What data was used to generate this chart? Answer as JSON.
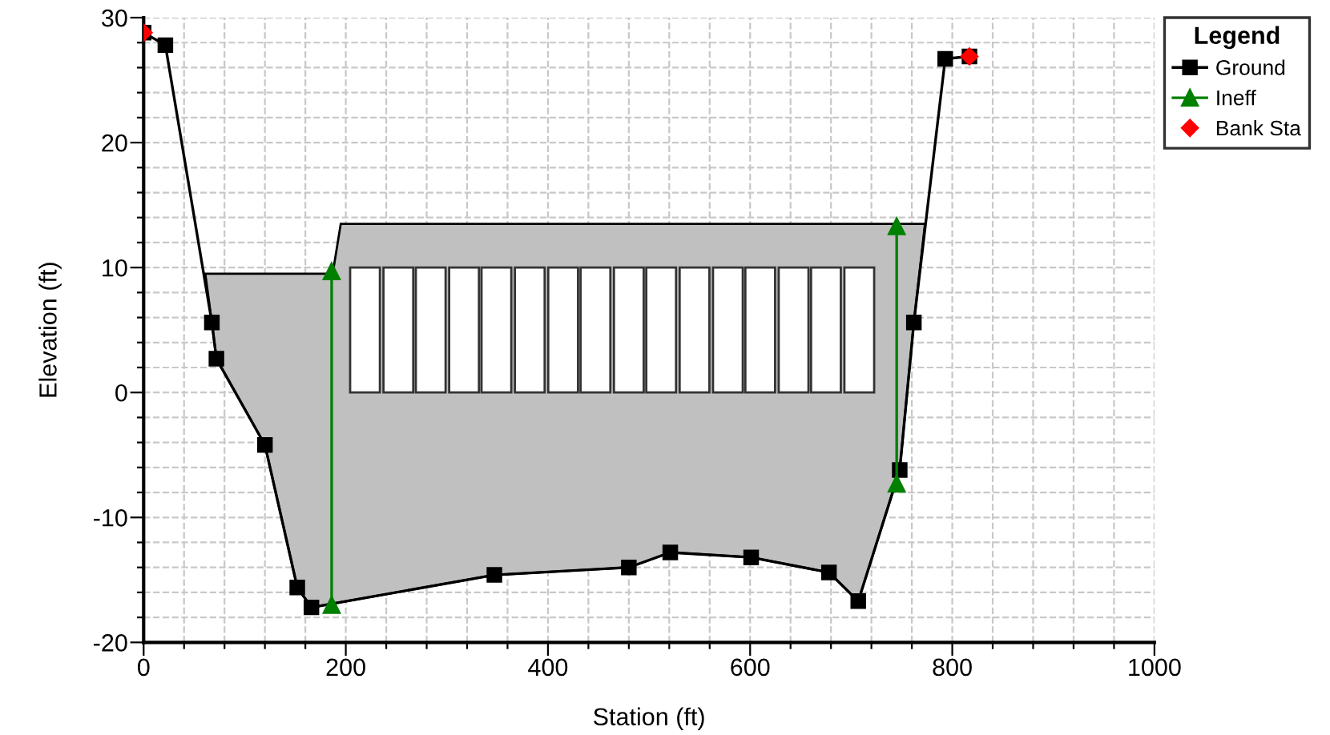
{
  "chart_data": {
    "type": "line",
    "xlabel": "Station (ft)",
    "ylabel": "Elevation (ft)",
    "legend_title": "Legend",
    "xlim": [
      0,
      1000
    ],
    "ylim": [
      -20,
      30
    ],
    "xticks": [
      0,
      {
        "value": 40,
        "label": null
      },
      {
        "value": 80,
        "label": null
      },
      {
        "value": 120,
        "label": null
      },
      {
        "value": 160,
        "label": null
      },
      200,
      {
        "value": 240,
        "label": null
      },
      {
        "value": 280,
        "label": null
      },
      {
        "value": 320,
        "label": null
      },
      {
        "value": 360,
        "label": null
      },
      400,
      {
        "value": 440,
        "label": null
      },
      {
        "value": 480,
        "label": null
      },
      {
        "value": 520,
        "label": null
      },
      {
        "value": 560,
        "label": null
      },
      600,
      {
        "value": 640,
        "label": null
      },
      {
        "value": 680,
        "label": null
      },
      {
        "value": 720,
        "label": null
      },
      {
        "value": 760,
        "label": null
      },
      800,
      {
        "value": 840,
        "label": null
      },
      {
        "value": 880,
        "label": null
      },
      {
        "value": 920,
        "label": null
      },
      {
        "value": 960,
        "label": null
      },
      1000
    ],
    "yticks": [
      -20,
      {
        "value": -18,
        "label": null
      },
      {
        "value": -16,
        "label": null
      },
      {
        "value": -14,
        "label": null
      },
      {
        "value": -12,
        "label": null
      },
      -10,
      {
        "value": -8,
        "label": null
      },
      {
        "value": -6,
        "label": null
      },
      {
        "value": -4,
        "label": null
      },
      {
        "value": -2,
        "label": null
      },
      0,
      {
        "value": 2,
        "label": null
      },
      {
        "value": 4,
        "label": null
      },
      {
        "value": 6,
        "label": null
      },
      {
        "value": 8,
        "label": null
      },
      10,
      {
        "value": 12,
        "label": null
      },
      {
        "value": 14,
        "label": null
      },
      {
        "value": 16,
        "label": null
      },
      {
        "value": 18,
        "label": null
      },
      20,
      {
        "value": 22,
        "label": null
      },
      {
        "value": 24,
        "label": null
      },
      {
        "value": 26,
        "label": null
      },
      {
        "value": 28,
        "label": null
      },
      30
    ],
    "grid": true,
    "legend": "top right",
    "series": [
      {
        "type": "area",
        "color": "#c0c0c0",
        "x": [
          61,
          187,
          195,
          773,
          762,
          748,
          707,
          678,
          601,
          521,
          480,
          347,
          166,
          152,
          120,
          72,
          67.5,
          61
        ],
        "values": [
          9.5,
          9.5,
          13.5,
          13.5,
          5.6,
          -6.2,
          -16.7,
          -14.4,
          -13.2,
          -12.8,
          -14.0,
          -14.6,
          -17.2,
          -15.6,
          -4.2,
          2.7,
          5.6,
          9.5
        ]
      },
      {
        "type": "bar",
        "color": "#ffffff",
        "x": [
          219,
          252,
          284,
          317,
          349,
          382,
          415,
          447,
          480,
          512,
          545,
          578,
          610,
          643,
          675,
          708
        ],
        "values": [
          10,
          10,
          10,
          10,
          10,
          10,
          10,
          10,
          10,
          10,
          10,
          10,
          10,
          10,
          10,
          10
        ]
      },
      {
        "name": "Ground",
        "color": "#000000",
        "marker": "square",
        "x": [
          0,
          21.5,
          67.5,
          72,
          120,
          152,
          166,
          347,
          480,
          521,
          601,
          678,
          707,
          748,
          762,
          793,
          817
        ],
        "values": [
          28.8,
          27.8,
          5.6,
          2.7,
          -4.2,
          -15.6,
          -17.2,
          -14.6,
          -14.0,
          -12.8,
          -13.2,
          -14.4,
          -16.7,
          -6.2,
          5.6,
          26.7,
          26.9
        ]
      },
      {
        "name": "Ineff",
        "color": "#008000",
        "marker": "triangle",
        "x": [
          186,
          186,
          465,
          745,
          745
        ],
        "values": [
          -17.0,
          9.7,
          null,
          -7.3,
          13.3
        ]
      },
      {
        "type": "scatter",
        "name": "Bank Sta",
        "color": "#ff0000",
        "marker": "diamond",
        "x": [
          0,
          817
        ],
        "values": [
          28.8,
          26.9
        ]
      }
    ]
  }
}
